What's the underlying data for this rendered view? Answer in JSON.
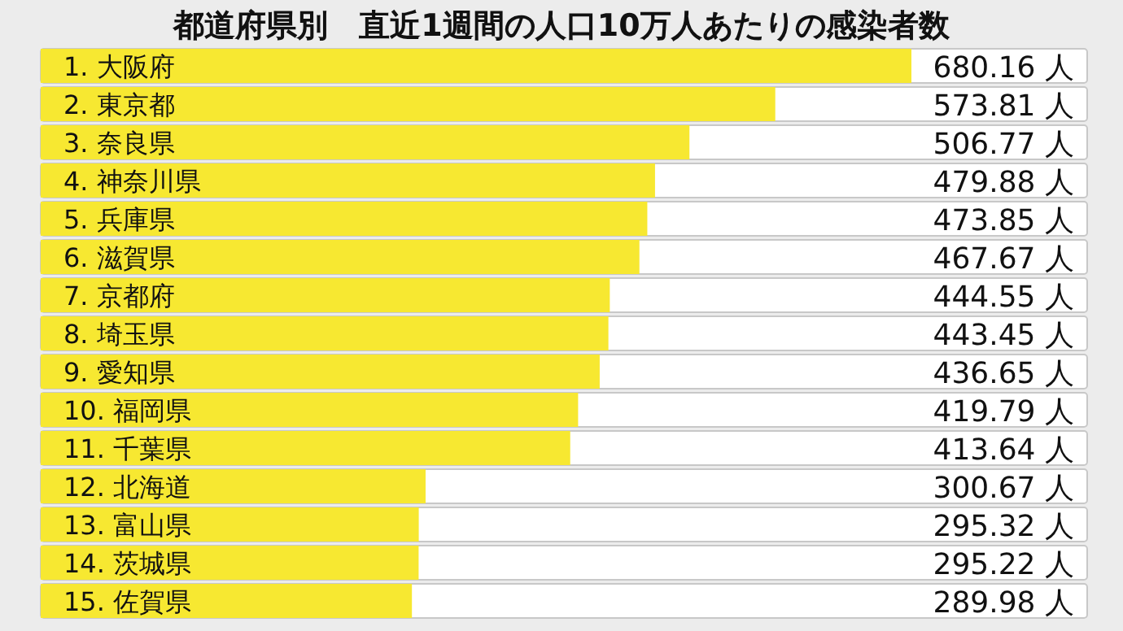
{
  "chart_data": {
    "type": "bar",
    "orientation": "horizontal",
    "title": "都道府県別　直近1週間の人口10万人あたりの感染者数",
    "categories": [
      "1. 大阪府",
      "2. 東京都",
      "3. 奈良県",
      "4. 神奈川県",
      "5. 兵庫県",
      "6. 滋賀県",
      "7. 京都府",
      "8. 埼玉県",
      "9. 愛知県",
      "10. 福岡県",
      "11. 千葉県",
      "12. 北海道",
      "13. 富山県",
      "14. 茨城県",
      "15. 佐賀県"
    ],
    "values": [
      680.16,
      573.81,
      506.77,
      479.88,
      473.85,
      467.67,
      444.55,
      443.45,
      436.65,
      419.79,
      413.64,
      300.67,
      295.32,
      295.22,
      289.98
    ],
    "value_labels": [
      "680.16 人",
      "573.81 人",
      "506.77 人",
      "479.88 人",
      "473.85 人",
      "467.67 人",
      "444.55 人",
      "443.45 人",
      "436.65 人",
      "419.79 人",
      "413.64 人",
      "300.67 人",
      "295.32 人",
      "295.22 人",
      "289.98 人"
    ],
    "color": "#f7e831"
  }
}
